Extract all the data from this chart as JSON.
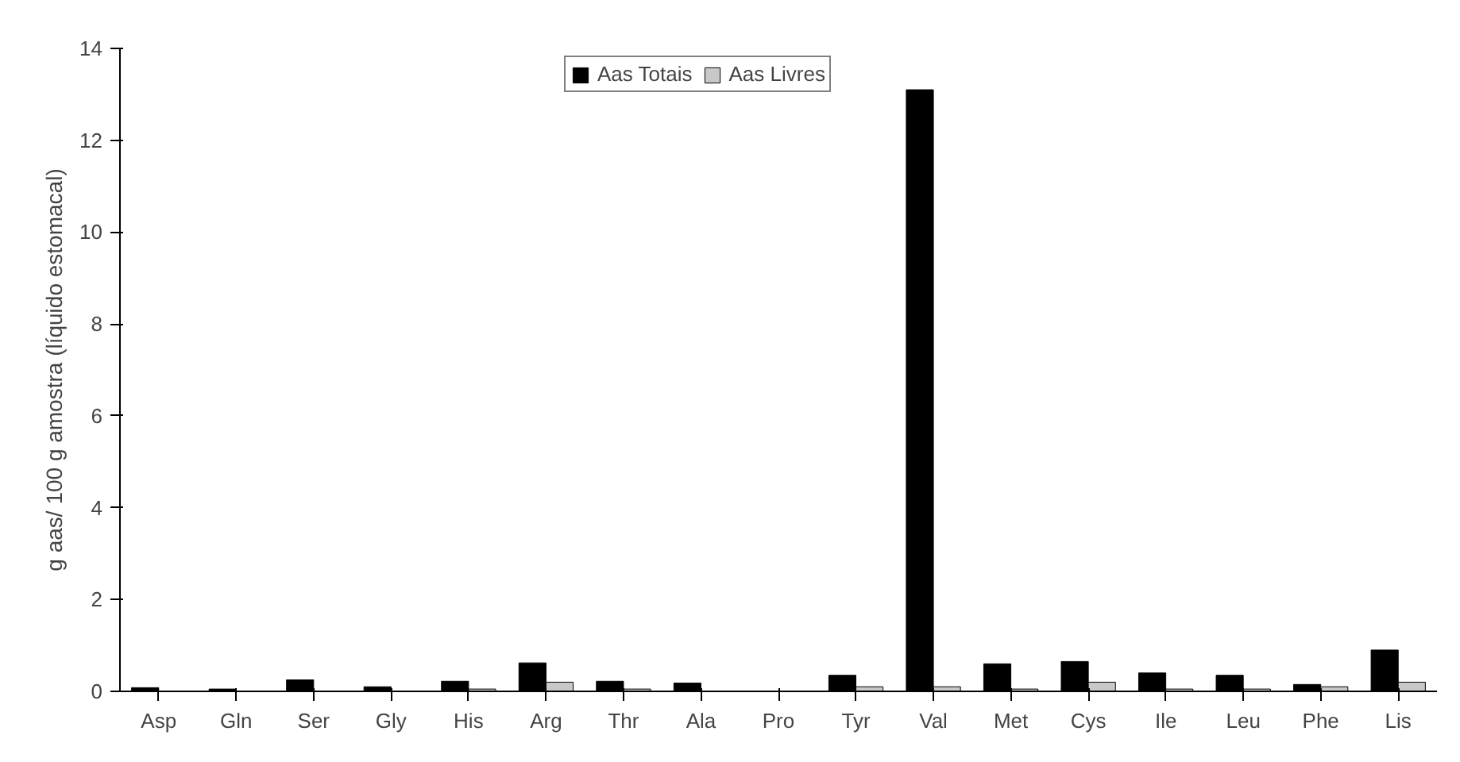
{
  "chart_data": {
    "type": "bar",
    "ylabel": "g aas/ 100 g amostra (líquido estomacal)",
    "categories": [
      "Asp",
      "Gln",
      "Ser",
      "Gly",
      "His",
      "Arg",
      "Thr",
      "Ala",
      "Pro",
      "Tyr",
      "Val",
      "Met",
      "Cys",
      "Ile",
      "Leu",
      "Phe",
      "Lis"
    ],
    "series": [
      {
        "name": "Aas Totais",
        "color": "#000000",
        "values": [
          0.08,
          0.05,
          0.25,
          0.1,
          0.22,
          0.62,
          0.22,
          0.18,
          null,
          0.35,
          13.1,
          0.6,
          0.65,
          0.4,
          0.35,
          0.15,
          0.9
        ]
      },
      {
        "name": "Aas Livres",
        "color": "#c8c8c8",
        "values": [
          null,
          null,
          null,
          null,
          0.05,
          0.2,
          0.05,
          null,
          null,
          0.1,
          0.1,
          0.05,
          0.2,
          0.05,
          0.05,
          0.1,
          0.2
        ]
      }
    ],
    "ylim": [
      0,
      14
    ],
    "yticks": [
      0,
      2,
      4,
      6,
      8,
      10,
      12,
      14
    ],
    "grid": false,
    "legend": "top"
  }
}
